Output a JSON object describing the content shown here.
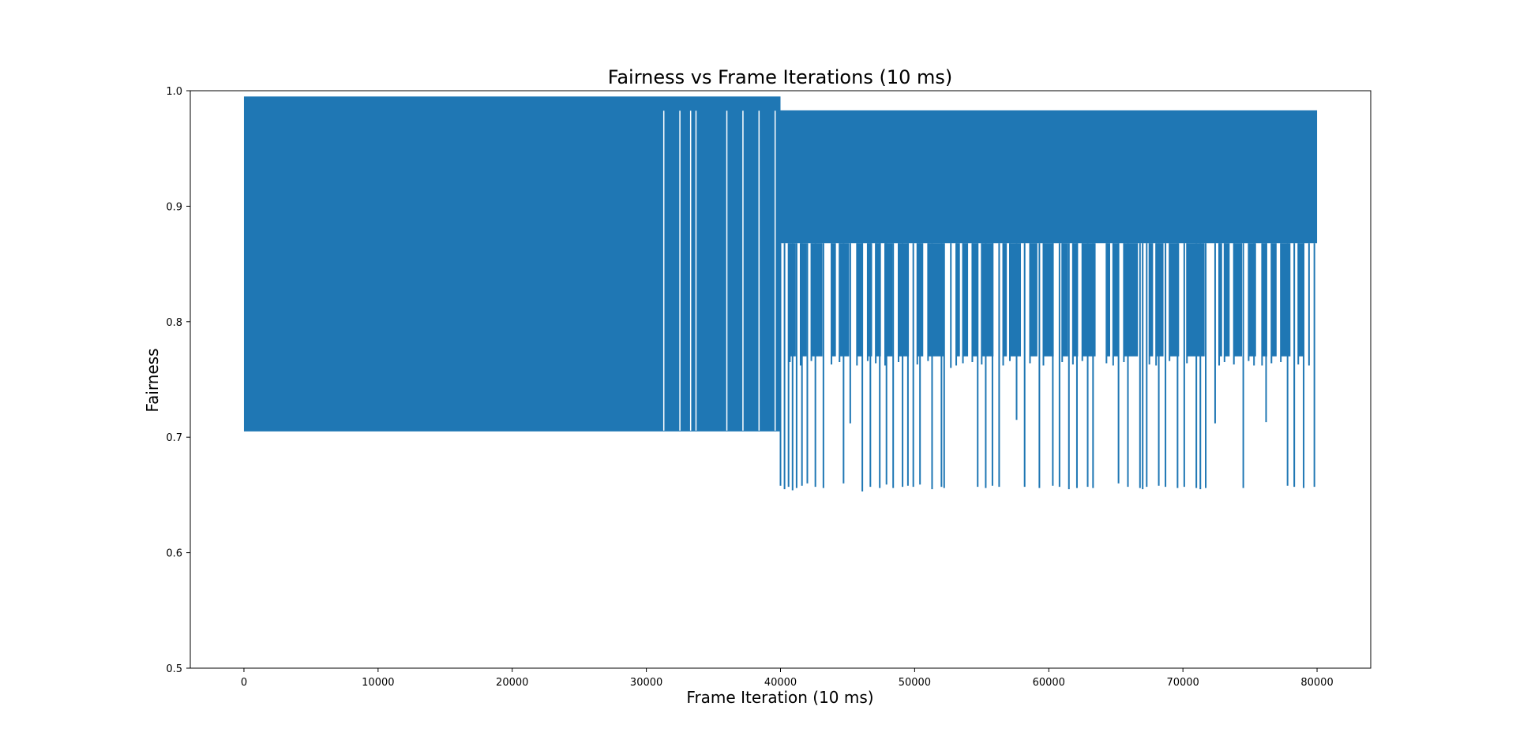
{
  "chart_data": {
    "type": "line",
    "title": "Fairness vs Frame Iterations (10 ms)",
    "xlabel": "Frame Iteration (10 ms)",
    "ylabel": "Fairness",
    "xlim": [
      -4000,
      84000
    ],
    "ylim": [
      0.5,
      1.0
    ],
    "xticks": [
      0,
      10000,
      20000,
      30000,
      40000,
      50000,
      60000,
      70000,
      80000
    ],
    "yticks": [
      0.5,
      0.6,
      0.7,
      0.8,
      0.9,
      1.0
    ],
    "xtick_labels": [
      "0",
      "10000",
      "20000",
      "30000",
      "40000",
      "50000",
      "60000",
      "70000",
      "80000"
    ],
    "ytick_labels": [
      "0.5",
      "0.6",
      "0.7",
      "0.8",
      "0.9",
      "1.0"
    ],
    "grid": false,
    "legend": "none",
    "line_color": "#1f77b4",
    "series": [
      {
        "regimes": [
          {
            "x_range": [
              0,
              40000
            ],
            "low": 0.705,
            "high": 0.995
          },
          {
            "x_range": [
              40000,
              80000
            ],
            "low": 0.868,
            "high": 0.983
          }
        ],
        "band_gaps_first_regime": [
          31300,
          32500,
          33300,
          33700,
          36000,
          37200,
          38400,
          39600
        ],
        "dips_second_regime": {
          "x": [
            40000,
            40300,
            40600,
            40900,
            41200,
            41600,
            42000,
            42600,
            43200,
            44700,
            45200,
            46100,
            46700,
            47400,
            47900,
            48400,
            49100,
            49500,
            49900,
            50400,
            51300,
            52000,
            52200,
            52700,
            54700,
            55300,
            55800,
            56300,
            57600,
            58200,
            59300,
            60300,
            60800,
            61500,
            62100,
            62900,
            63300,
            65200,
            65900,
            66800,
            67000,
            67300,
            68200,
            68700,
            69600,
            70100,
            71000,
            71300,
            71700,
            72400,
            74500,
            75300,
            76200,
            77800,
            78300,
            79000,
            79800
          ],
          "y": [
            0.658,
            0.655,
            0.657,
            0.654,
            0.656,
            0.658,
            0.66,
            0.657,
            0.656,
            0.66,
            0.712,
            0.653,
            0.657,
            0.656,
            0.659,
            0.656,
            0.657,
            0.658,
            0.657,
            0.659,
            0.655,
            0.657,
            0.656,
            0.76,
            0.657,
            0.656,
            0.658,
            0.657,
            0.715,
            0.657,
            0.656,
            0.658,
            0.657,
            0.655,
            0.656,
            0.657,
            0.656,
            0.66,
            0.657,
            0.656,
            0.655,
            0.657,
            0.658,
            0.657,
            0.656,
            0.657,
            0.656,
            0.655,
            0.656,
            0.712,
            0.656,
            0.762,
            0.713,
            0.658,
            0.657,
            0.656,
            0.657
          ]
        },
        "mid_dips_second_regime": {
          "x": [
            40700,
            41500,
            42300,
            43800,
            44400,
            45700,
            46500,
            47100,
            47800,
            48800,
            50200,
            51000,
            53100,
            53600,
            54300,
            55000,
            56600,
            57100,
            58600,
            59600,
            61000,
            61800,
            62500,
            64300,
            64800,
            65600,
            67500,
            68000,
            69000,
            70300,
            72700,
            73100,
            73800,
            74900,
            75900,
            76600,
            77300,
            78600,
            79400
          ],
          "y": [
            0.765,
            0.762,
            0.766,
            0.763,
            0.765,
            0.762,
            0.766,
            0.764,
            0.762,
            0.765,
            0.763,
            0.766,
            0.762,
            0.764,
            0.765,
            0.763,
            0.762,
            0.766,
            0.764,
            0.762,
            0.765,
            0.763,
            0.766,
            0.764,
            0.762,
            0.765,
            0.763,
            0.762,
            0.766,
            0.764,
            0.762,
            0.765,
            0.763,
            0.766,
            0.762,
            0.764,
            0.765,
            0.763,
            0.762
          ]
        }
      }
    ]
  }
}
